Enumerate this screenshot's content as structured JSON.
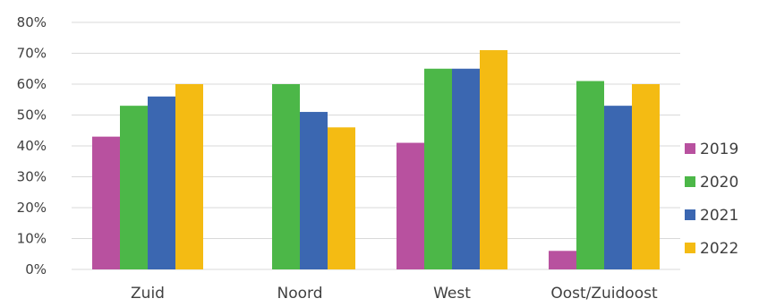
{
  "chart_data": {
    "type": "bar",
    "title": "",
    "xlabel": "",
    "ylabel": "",
    "categories": [
      "Zuid",
      "Noord",
      "West",
      "Oost/Zuidoost"
    ],
    "ylim": [
      0,
      80
    ],
    "y_ticks": [
      "0%",
      "10%",
      "20%",
      "30%",
      "40%",
      "50%",
      "60%",
      "70%",
      "80%"
    ],
    "y_tick_values": [
      0,
      10,
      20,
      30,
      40,
      50,
      60,
      70,
      80
    ],
    "grid": true,
    "legend_position": "right",
    "series": [
      {
        "name": "2019",
        "color": "#b8519f",
        "values": [
          43,
          null,
          41,
          6
        ]
      },
      {
        "name": "2020",
        "color": "#4cb748",
        "values": [
          53,
          60,
          65,
          61
        ]
      },
      {
        "name": "2021",
        "color": "#3b67b1",
        "values": [
          56,
          51,
          65,
          53
        ]
      },
      {
        "name": "2022",
        "color": "#f4bb13",
        "values": [
          60,
          46,
          71,
          60
        ]
      }
    ]
  }
}
